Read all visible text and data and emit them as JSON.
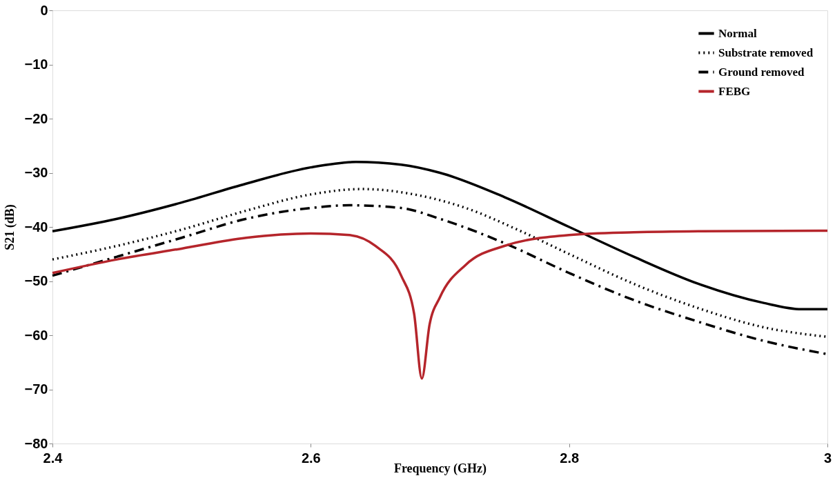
{
  "chart_data": {
    "type": "line",
    "xlabel": "Frequency (GHz)",
    "ylabel": "S21 (dB)",
    "xlim": [
      2.4,
      3.0
    ],
    "xticks": [
      2.4,
      2.6,
      2.8,
      3
    ],
    "ylim": [
      -80,
      0
    ],
    "yticks": [
      -80,
      -70,
      -60,
      -50,
      -40,
      -30,
      -20,
      -10,
      0
    ],
    "grid": false,
    "legend": "top right",
    "marker": "none",
    "series": [
      {
        "name": "Normal",
        "color": "#000000",
        "line_style": "solid",
        "x": [
          2.4,
          2.45,
          2.5,
          2.55,
          2.6,
          2.635,
          2.67,
          2.7,
          2.75,
          2.8,
          2.85,
          2.9,
          2.95,
          2.98,
          3.0
        ],
        "values": [
          -40.8,
          -38.5,
          -35.5,
          -32,
          -29,
          -28,
          -28.5,
          -30,
          -34.5,
          -40,
          -45.5,
          -50.5,
          -54,
          -55.2,
          -55.2
        ]
      },
      {
        "name": "Substrate removed",
        "color": "#000000",
        "line_style": "dotted",
        "x": [
          2.4,
          2.45,
          2.5,
          2.55,
          2.6,
          2.64,
          2.68,
          2.72,
          2.76,
          2.8,
          2.85,
          2.9,
          2.95,
          3.0
        ],
        "values": [
          -46,
          -43.5,
          -40.5,
          -37,
          -34,
          -33,
          -34,
          -36.5,
          -40.5,
          -45,
          -50.5,
          -55,
          -58.5,
          -60.3
        ]
      },
      {
        "name": "Ground removed",
        "color": "#000000",
        "line_style": "dashed",
        "x": [
          2.4,
          2.45,
          2.5,
          2.55,
          2.6,
          2.63,
          2.67,
          2.7,
          2.75,
          2.8,
          2.85,
          2.9,
          2.95,
          3.0
        ],
        "values": [
          -49,
          -45.5,
          -42,
          -38.5,
          -36.5,
          -36,
          -36.5,
          -38.5,
          -43,
          -48.5,
          -53.5,
          -57.5,
          -61,
          -63.5
        ]
      },
      {
        "name": "FEBG",
        "color": "#b5252b",
        "line_style": "solid",
        "x": [
          2.4,
          2.45,
          2.5,
          2.55,
          2.6,
          2.63,
          2.65,
          2.67,
          2.68,
          2.686,
          2.692,
          2.7,
          2.72,
          2.75,
          2.8,
          2.85,
          2.9,
          3.0
        ],
        "values": [
          -48.5,
          -46,
          -44,
          -42,
          -41.2,
          -41.5,
          -43.5,
          -49,
          -56,
          -68,
          -58,
          -53,
          -47,
          -43.5,
          -41.5,
          -41,
          -40.8,
          -40.7
        ]
      }
    ]
  }
}
